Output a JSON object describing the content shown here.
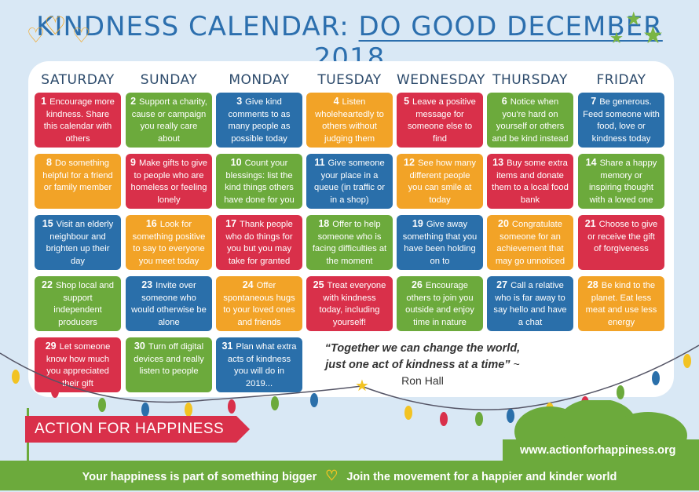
{
  "title": {
    "part1": "KINDNESS CALENDAR:",
    "part2": "DO GOOD DECEMBER 2018"
  },
  "days": [
    "SATURDAY",
    "SUNDAY",
    "MONDAY",
    "TUESDAY",
    "WEDNESDAY",
    "THURSDAY",
    "FRIDAY"
  ],
  "cells": [
    {
      "num": "1",
      "text": "Encourage more kindness. Share this calendar with others",
      "color": "red"
    },
    {
      "num": "2",
      "text": "Support a charity, cause or campaign you really care about",
      "color": "green"
    },
    {
      "num": "3",
      "text": "Give kind comments to as many people as possible today",
      "color": "blue"
    },
    {
      "num": "4",
      "text": "Listen wholeheartedly to others without judging them",
      "color": "orange"
    },
    {
      "num": "5",
      "text": "Leave a positive message for someone else to find",
      "color": "red"
    },
    {
      "num": "6",
      "text": "Notice when you're hard on yourself or others and be kind instead",
      "color": "green"
    },
    {
      "num": "7",
      "text": "Be generous. Feed someone with food, love or kindness today",
      "color": "blue"
    },
    {
      "num": "8",
      "text": "Do something helpful for a friend or family member",
      "color": "orange"
    },
    {
      "num": "9",
      "text": "Make gifts to give to people who are homeless or feeling lonely",
      "color": "red"
    },
    {
      "num": "10",
      "text": "Count your blessings: list the kind things others have done for you",
      "color": "green"
    },
    {
      "num": "11",
      "text": "Give someone your place in a queue (in traffic or in a shop)",
      "color": "blue"
    },
    {
      "num": "12",
      "text": "See how many different people you can smile at today",
      "color": "orange"
    },
    {
      "num": "13",
      "text": "Buy some extra items and donate them to a local food bank",
      "color": "red"
    },
    {
      "num": "14",
      "text": "Share a happy memory or inspiring thought with a loved one",
      "color": "green"
    },
    {
      "num": "15",
      "text": "Visit an elderly neighbour and brighten up their day",
      "color": "blue"
    },
    {
      "num": "16",
      "text": "Look for something positive to say to everyone you meet today",
      "color": "orange"
    },
    {
      "num": "17",
      "text": "Thank people who do things for you but you may take for granted",
      "color": "red"
    },
    {
      "num": "18",
      "text": "Offer to help someone who is facing difficulties at the moment",
      "color": "green"
    },
    {
      "num": "19",
      "text": "Give away something that you have been holding on to",
      "color": "blue"
    },
    {
      "num": "20",
      "text": "Congratulate someone for an achievement that may go unnoticed",
      "color": "orange"
    },
    {
      "num": "21",
      "text": "Choose to give or receive the gift of forgiveness",
      "color": "red"
    },
    {
      "num": "22",
      "text": "Shop local and support independent producers",
      "color": "green"
    },
    {
      "num": "23",
      "text": "Invite over someone who would otherwise be alone",
      "color": "blue"
    },
    {
      "num": "24",
      "text": "Offer spontaneous hugs to your loved ones and friends",
      "color": "orange"
    },
    {
      "num": "25",
      "text": "Treat everyone with kindness today, including yourself!",
      "color": "red"
    },
    {
      "num": "26",
      "text": "Encourage others to join you outside and enjoy time in nature",
      "color": "green"
    },
    {
      "num": "27",
      "text": "Call a relative who is far away to say hello and have a chat",
      "color": "blue"
    },
    {
      "num": "28",
      "text": "Be kind to the planet. Eat less meat and use less energy",
      "color": "orange"
    },
    {
      "num": "29",
      "text": "Let someone know how much you appreciated their gift",
      "color": "red"
    },
    {
      "num": "30",
      "text": "Turn off digital devices and really listen to people",
      "color": "green"
    },
    {
      "num": "31",
      "text": "Plan what extra acts of kindness you will do in 2019...",
      "color": "blue"
    }
  ],
  "quote": {
    "text": "“Together we can change the world, just one act of kindness at a time”",
    "author": "~ Ron Hall"
  },
  "brand": "ACTION FOR HAPPINESS",
  "url": "www.actionforhappiness.org",
  "footer": {
    "left": "Your happiness is part of something bigger",
    "right": "Join the movement for a happier and kinder world"
  },
  "colors": {
    "red": "#d9304a",
    "green": "#6caa3c",
    "blue": "#2a6faa",
    "orange": "#f2a327",
    "title": "#2c6fae"
  }
}
